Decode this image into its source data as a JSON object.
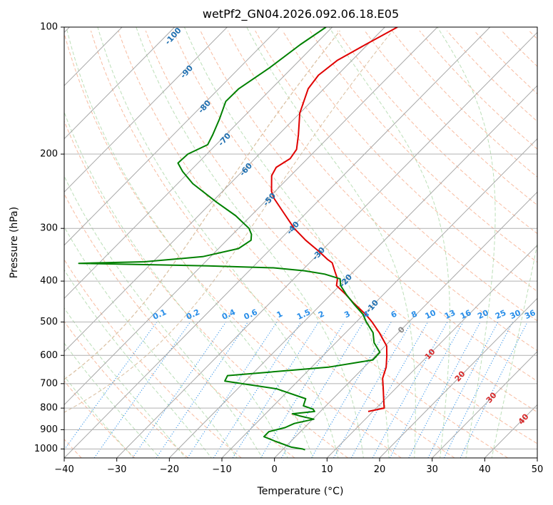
{
  "chart_data": {
    "type": "line",
    "subtype": "skew-T log-P diagram",
    "title": "wetPf2_GN04.2026.092.06.18.E05",
    "xlabel": "Temperature (°C)",
    "ylabel": "Pressure (hPa)",
    "xlim": [
      -40,
      50
    ],
    "ylim": [
      1050,
      100
    ],
    "y_scale": "log",
    "x_ticks": [
      -40,
      -30,
      -20,
      -10,
      0,
      10,
      20,
      30,
      40,
      50
    ],
    "x_tick_labels": [
      "−40",
      "−30",
      "−20",
      "−10",
      "0",
      "10",
      "20",
      "30",
      "40",
      "50"
    ],
    "y_ticks": [
      100,
      200,
      300,
      400,
      500,
      600,
      700,
      800,
      900,
      1000
    ],
    "y_tick_labels": [
      "100",
      "200",
      "300",
      "400",
      "500",
      "600",
      "700",
      "800",
      "900",
      "1000"
    ],
    "grid": true,
    "colors": {
      "temperature": "#e00000",
      "dewpoint": "#008000",
      "dry_adiabat_label": "#1f6fb0",
      "mixing_ratio": "#2a8ee8",
      "isotherm_label": "#d62728",
      "grid": "#b0b0b0"
    },
    "series": [
      {
        "name": "",
        "color": "#e00000",
        "points": [
          [
            100,
            -57.6
          ],
          [
            110,
            -60.4
          ],
          [
            120,
            -62.8
          ],
          [
            130,
            -63.6
          ],
          [
            140,
            -63.0
          ],
          [
            160,
            -60.0
          ],
          [
            180,
            -56.2
          ],
          [
            195,
            -53.8
          ],
          [
            205,
            -53.3
          ],
          [
            215,
            -54.3
          ],
          [
            225,
            -53.6
          ],
          [
            245,
            -50.7
          ],
          [
            255,
            -48.8
          ],
          [
            280,
            -43.4
          ],
          [
            300,
            -39.4
          ],
          [
            320,
            -35.0
          ],
          [
            340,
            -30.4
          ],
          [
            355,
            -27.3
          ],
          [
            362,
            -25.7
          ],
          [
            380,
            -23.5
          ],
          [
            395,
            -21.7
          ],
          [
            410,
            -20.6
          ],
          [
            430,
            -17.2
          ],
          [
            450,
            -14.2
          ],
          [
            480,
            -9.6
          ],
          [
            500,
            -7.0
          ],
          [
            530,
            -3.6
          ],
          [
            570,
            0.3
          ],
          [
            600,
            2.1
          ],
          [
            640,
            4.2
          ],
          [
            680,
            5.6
          ],
          [
            720,
            7.7
          ],
          [
            770,
            10.1
          ],
          [
            800,
            11.5
          ],
          [
            815,
            9.1
          ]
        ]
      },
      {
        "name": "",
        "color": "#008000",
        "points": [
          [
            100,
            -71.2
          ],
          [
            110,
            -72.8
          ],
          [
            125,
            -74.3
          ],
          [
            140,
            -76.2
          ],
          [
            150,
            -76.3
          ],
          [
            165,
            -74.2
          ],
          [
            180,
            -72.5
          ],
          [
            190,
            -71.6
          ],
          [
            200,
            -73.6
          ],
          [
            210,
            -73.8
          ],
          [
            220,
            -71.3
          ],
          [
            235,
            -67.1
          ],
          [
            260,
            -59.1
          ],
          [
            280,
            -52.9
          ],
          [
            300,
            -48.0
          ],
          [
            310,
            -46.4
          ],
          [
            320,
            -45.4
          ],
          [
            335,
            -46.2
          ],
          [
            350,
            -51.5
          ],
          [
            360,
            -61.6
          ],
          [
            363,
            -73.8
          ],
          [
            368,
            -48.8
          ],
          [
            372,
            -35.9
          ],
          [
            378,
            -29.5
          ],
          [
            385,
            -25.0
          ],
          [
            395,
            -21.2
          ],
          [
            410,
            -19.8
          ],
          [
            430,
            -17.1
          ],
          [
            455,
            -13.6
          ],
          [
            480,
            -10.1
          ],
          [
            500,
            -8.1
          ],
          [
            530,
            -4.8
          ],
          [
            560,
            -2.7
          ],
          [
            590,
            0.2
          ],
          [
            615,
            0.3
          ],
          [
            640,
            -6.8
          ],
          [
            670,
            -24.4
          ],
          [
            690,
            -23.9
          ],
          [
            720,
            -12.6
          ],
          [
            760,
            -5.2
          ],
          [
            790,
            -4.3
          ],
          [
            805,
            -1.8
          ],
          [
            815,
            -1.1
          ],
          [
            825,
            -4.9
          ],
          [
            835,
            -3.1
          ],
          [
            850,
            0.2
          ],
          [
            870,
            -2.7
          ],
          [
            890,
            -3.7
          ],
          [
            910,
            -6.0
          ],
          [
            935,
            -6.0
          ],
          [
            960,
            -2.8
          ],
          [
            990,
            1.2
          ],
          [
            1000,
            3.7
          ],
          [
            1005,
            4.3
          ]
        ]
      }
    ],
    "dry_adiabat_labels": [
      "-100",
      "-90",
      "-80",
      "-70",
      "-60",
      "-50",
      "-40",
      "-30",
      "-20",
      "-10"
    ],
    "mixing_ratio_labels": [
      "0.1",
      "0.2",
      "0.4",
      "0.6",
      "1",
      "1.5",
      "2",
      "3",
      "4",
      "6",
      "8",
      "10",
      "13",
      "16",
      "20",
      "25",
      "30",
      "36"
    ],
    "isotherm_labels": [
      "0",
      "10",
      "20",
      "30",
      "40"
    ]
  }
}
